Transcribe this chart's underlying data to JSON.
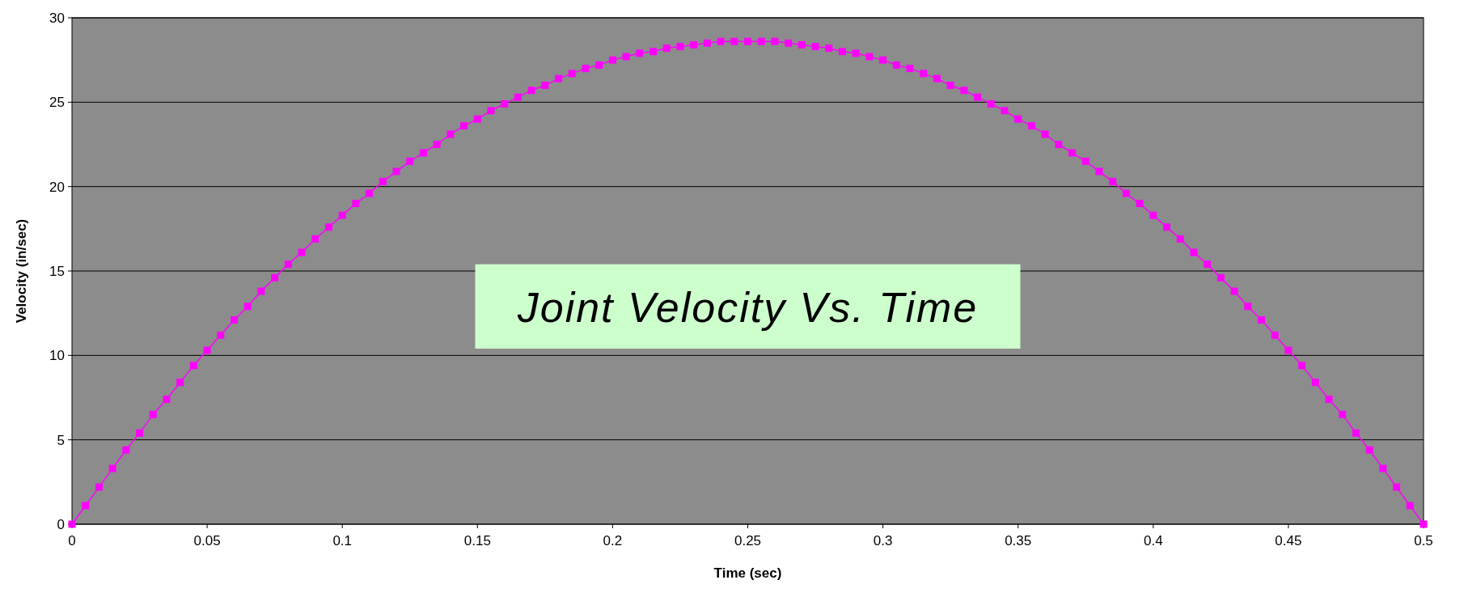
{
  "chart_data": {
    "type": "line",
    "title": "Joint Velocity Vs. Time",
    "xlabel": "Time (sec)",
    "ylabel": "Velocity (in/sec)",
    "x": [
      0,
      0.005,
      0.01,
      0.015,
      0.02,
      0.025,
      0.03,
      0.035,
      0.04,
      0.045,
      0.05,
      0.055,
      0.06,
      0.065,
      0.07,
      0.075,
      0.08,
      0.085,
      0.09,
      0.095,
      0.1,
      0.105,
      0.11,
      0.115,
      0.12,
      0.125,
      0.13,
      0.135,
      0.14,
      0.145,
      0.15,
      0.155,
      0.16,
      0.165,
      0.17,
      0.175,
      0.18,
      0.185,
      0.19,
      0.195,
      0.2,
      0.205,
      0.21,
      0.215,
      0.22,
      0.225,
      0.23,
      0.235,
      0.24,
      0.245,
      0.25,
      0.255,
      0.26,
      0.265,
      0.27,
      0.275,
      0.28,
      0.285,
      0.29,
      0.295,
      0.3,
      0.305,
      0.31,
      0.315,
      0.32,
      0.325,
      0.33,
      0.335,
      0.34,
      0.345,
      0.35,
      0.355,
      0.36,
      0.365,
      0.37,
      0.375,
      0.38,
      0.385,
      0.39,
      0.395,
      0.4,
      0.405,
      0.41,
      0.415,
      0.42,
      0.425,
      0.43,
      0.435,
      0.44,
      0.445,
      0.45,
      0.455,
      0.46,
      0.465,
      0.47,
      0.475,
      0.48,
      0.485,
      0.49,
      0.495,
      0.5
    ],
    "series": [
      {
        "color": "#ff00ff",
        "values": [
          0,
          1.1,
          2.2,
          3.3,
          4.4,
          5.4,
          6.5,
          7.4,
          8.4,
          9.4,
          10.3,
          11.2,
          12.1,
          12.9,
          13.8,
          14.6,
          15.4,
          16.1,
          16.9,
          17.6,
          18.3,
          19.0,
          19.6,
          20.3,
          20.9,
          21.5,
          22.0,
          22.5,
          23.1,
          23.6,
          24.0,
          24.5,
          24.9,
          25.3,
          25.7,
          26.0,
          26.4,
          26.7,
          27.0,
          27.2,
          27.5,
          27.7,
          27.9,
          28.0,
          28.2,
          28.3,
          28.4,
          28.5,
          28.6,
          28.6,
          28.6,
          28.6,
          28.6,
          28.5,
          28.4,
          28.3,
          28.2,
          28.0,
          27.9,
          27.7,
          27.5,
          27.2,
          27.0,
          26.7,
          26.4,
          26.0,
          25.7,
          25.3,
          24.9,
          24.5,
          24.0,
          23.6,
          23.1,
          22.5,
          22.0,
          21.5,
          20.9,
          20.3,
          19.6,
          19.0,
          18.3,
          17.6,
          16.9,
          16.1,
          15.4,
          14.6,
          13.8,
          12.9,
          12.1,
          11.2,
          10.3,
          9.4,
          8.4,
          7.4,
          6.5,
          5.4,
          4.4,
          3.3,
          2.2,
          1.1,
          0
        ]
      }
    ],
    "xlim": [
      0,
      0.5
    ],
    "xticks": [
      0,
      0.05,
      0.1,
      0.15,
      0.2,
      0.25,
      0.3,
      0.35,
      0.4,
      0.45,
      0.5
    ],
    "ylim": [
      0,
      30
    ],
    "yticks": [
      0,
      5,
      10,
      15,
      20,
      25,
      30
    ],
    "grid": "y",
    "marker": "square",
    "line_style": "solid"
  }
}
